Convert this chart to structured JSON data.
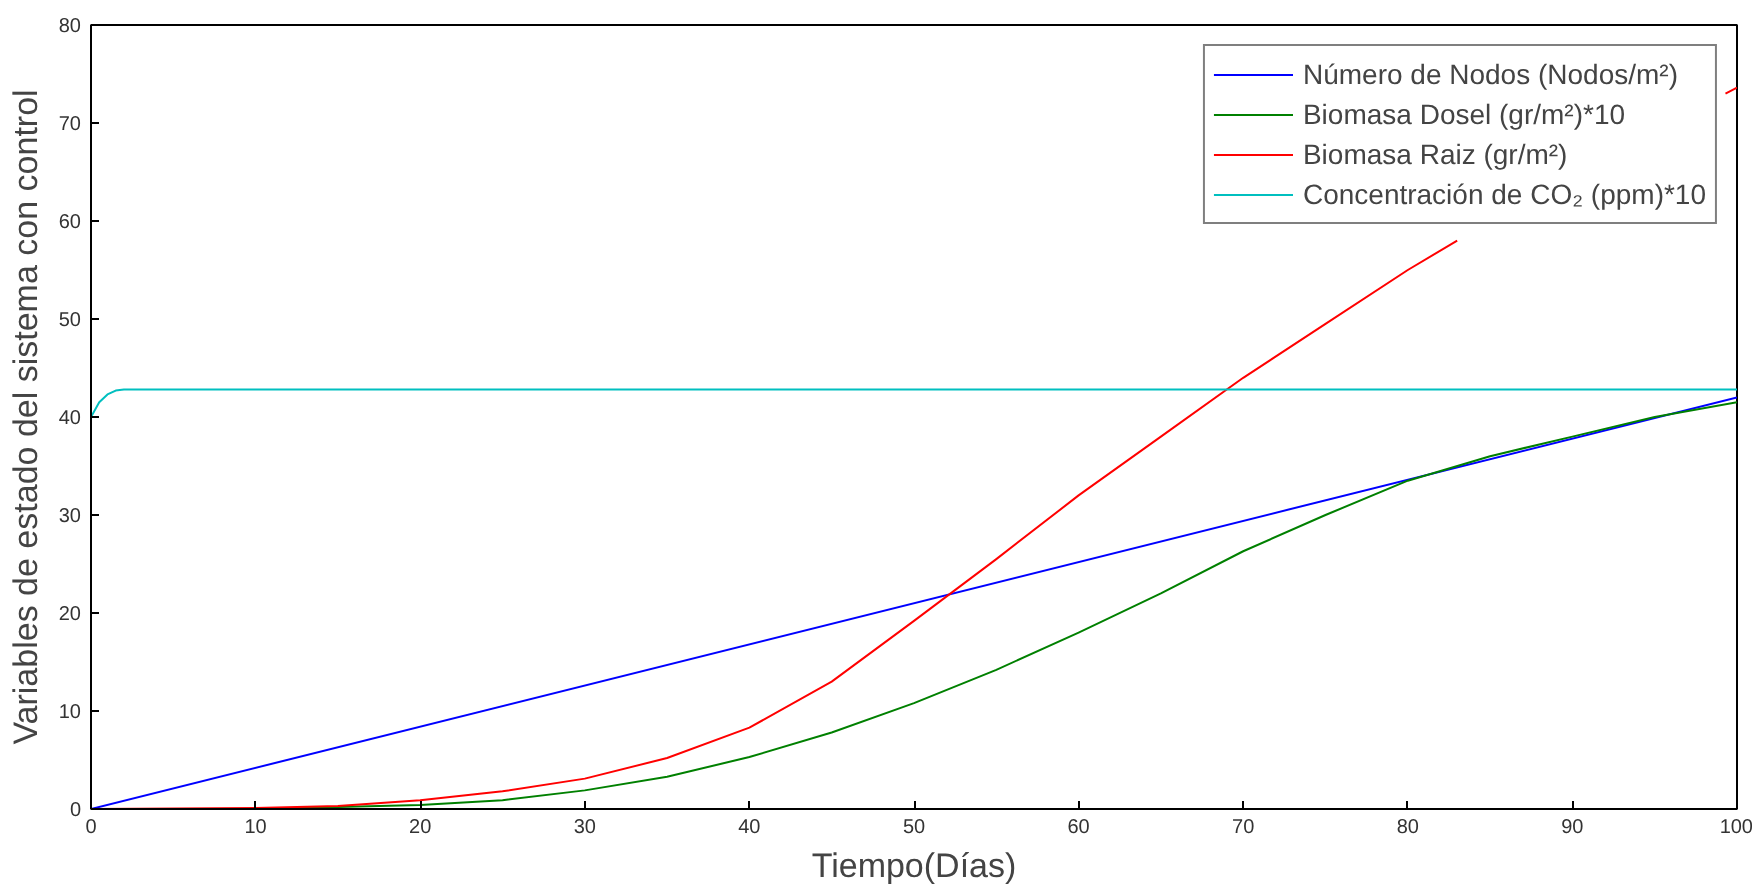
{
  "chart_data": {
    "type": "line",
    "xlabel": "Tiempo(Días)",
    "ylabel": "Variables de estado del sistema con control",
    "xlim": [
      0,
      100
    ],
    "ylim": [
      0,
      80
    ],
    "xticks": [
      0,
      10,
      20,
      30,
      40,
      50,
      60,
      70,
      80,
      90,
      100
    ],
    "yticks": [
      0,
      10,
      20,
      30,
      40,
      50,
      60,
      70,
      80
    ],
    "grid": false,
    "legend": "top right",
    "marker": "none",
    "line_style": "solid",
    "series": [
      {
        "name": "Número de Nodos (Nodos/m²)",
        "color": "#0000ff",
        "x": [
          0,
          100
        ],
        "values": [
          0,
          42
        ]
      },
      {
        "name": "Biomasa Dosel (gr/m²)*10",
        "color": "#008000",
        "x": [
          0,
          10,
          20,
          25,
          30,
          35,
          40,
          45,
          50,
          55,
          60,
          65,
          70,
          75,
          80,
          85,
          90,
          95,
          100
        ],
        "values": [
          0,
          0,
          0.4,
          0.9,
          1.9,
          3.3,
          5.3,
          7.8,
          10.8,
          14.2,
          18,
          22,
          26.3,
          30,
          33.5,
          36,
          38,
          40,
          41.5
        ]
      },
      {
        "name": "Biomasa Raiz (gr/m²)",
        "color": "#ff0000",
        "x": [
          0,
          10,
          15,
          20,
          25,
          30,
          35,
          40,
          45,
          50,
          55,
          60,
          65,
          70,
          75,
          80,
          83,
          85,
          90,
          95,
          99.3,
          100
        ],
        "values": [
          0,
          0.1,
          0.3,
          0.9,
          1.8,
          3.1,
          5.2,
          8.3,
          13,
          19.2,
          25.5,
          32,
          38,
          44,
          49.5,
          55,
          58,
          null,
          null,
          null,
          73,
          73.6
        ]
      },
      {
        "name": "Concentración de CO₂ (ppm)*10",
        "color": "#00bfbf",
        "x": [
          0,
          0.5,
          1,
          1.5,
          2,
          100
        ],
        "values": [
          40,
          41.5,
          42.3,
          42.7,
          42.8,
          42.8
        ]
      }
    ]
  }
}
